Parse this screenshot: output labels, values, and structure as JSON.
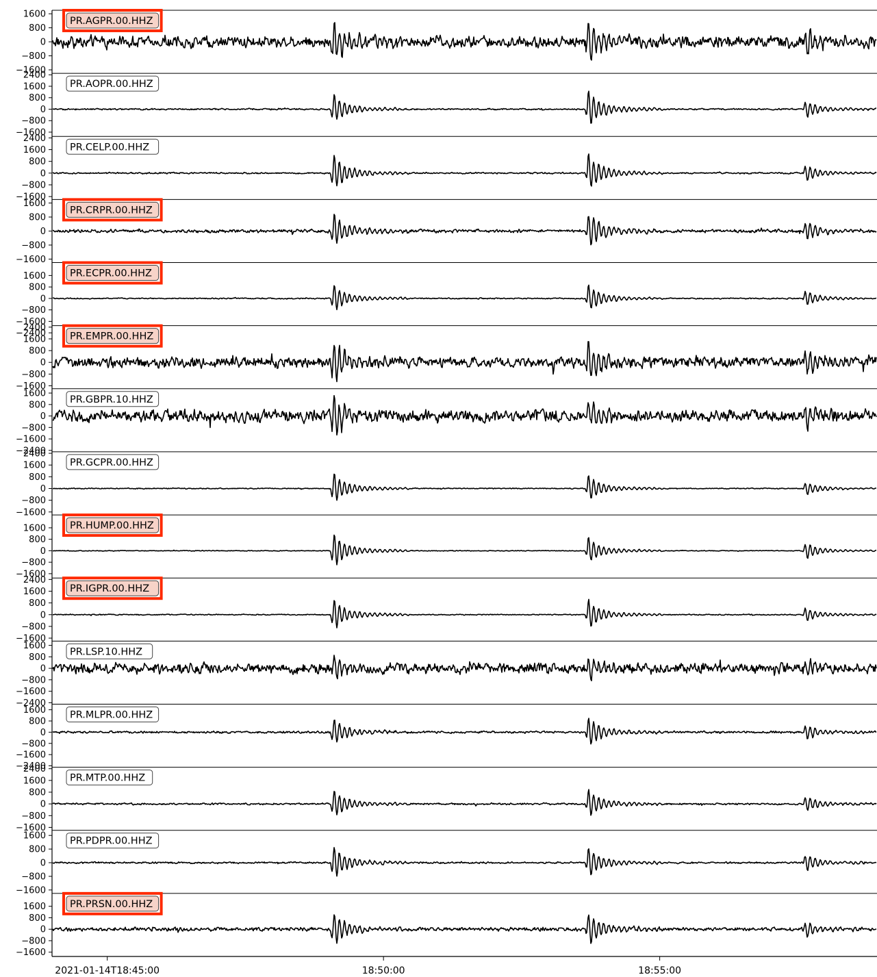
{
  "chart_data": {
    "type": "line",
    "title": "",
    "xlabel": "",
    "ylabel": "",
    "x_start": "2021-01-14T18:44:00",
    "x_end": "2021-01-14T18:58:56",
    "xticks": [
      {
        "value": "2021-01-14T18:45:00",
        "label": "2021-01-14T18:45:00"
      },
      {
        "value": "2021-01-14T18:50:00",
        "label": "18:50:00"
      },
      {
        "value": "2021-01-14T18:55:00",
        "label": "18:55:00"
      }
    ],
    "event_arrivals": [
      "2021-01-14T18:49:05",
      "2021-01-14T18:53:42",
      "2021-01-14T18:57:38"
    ],
    "highlight_color": "#ff2a00",
    "traces": [
      {
        "name": "PR.AGPR.00.HHZ",
        "highlighted": true,
        "ylim": [
          -1800,
          1800
        ],
        "yticks": [
          "1600",
          "800",
          "0",
          "−800",
          "−1600"
        ],
        "noise": 380,
        "event_amp": [
          1500,
          1700,
          900
        ]
      },
      {
        "name": "PR.AOPR.00.HHZ",
        "highlighted": false,
        "ylim": [
          -1900,
          2500
        ],
        "yticks": [
          "2400",
          "1600",
          "800",
          "0",
          "−800",
          "−1600"
        ],
        "noise": 60,
        "event_amp": [
          1300,
          1600,
          800
        ]
      },
      {
        "name": "PR.CELP.00.HHZ",
        "highlighted": false,
        "ylim": [
          -1800,
          2500
        ],
        "yticks": [
          "2400",
          "1600",
          "800",
          "0",
          "−800",
          "−1600"
        ],
        "noise": 60,
        "event_amp": [
          1500,
          1550,
          700
        ]
      },
      {
        "name": "PR.CRPR.00.HHZ",
        "highlighted": true,
        "ylim": [
          -1800,
          1800
        ],
        "yticks": [
          "1600",
          "800",
          "0",
          "−800",
          "−1600"
        ],
        "noise": 110,
        "event_amp": [
          1200,
          1300,
          700
        ]
      },
      {
        "name": "PR.ECPR.00.HHZ",
        "highlighted": true,
        "ylim": [
          -1900,
          2500
        ],
        "yticks": [
          "1600",
          "800",
          "0",
          "−800",
          "−1600",
          "−2400"
        ],
        "noise": 45,
        "event_amp": [
          1200,
          1200,
          700
        ]
      },
      {
        "name": "PR.EMPR.00.HHZ",
        "highlighted": true,
        "ylim": [
          -1800,
          2500
        ],
        "yticks": [
          "2400",
          "1600",
          "800",
          "0",
          "−800",
          "−1600"
        ],
        "noise": 420,
        "event_amp": [
          1800,
          1700,
          1200
        ]
      },
      {
        "name": "PR.GBPR.10.HHZ",
        "highlighted": false,
        "ylim": [
          -2500,
          1900
        ],
        "yticks": [
          "1600",
          "800",
          "0",
          "−800",
          "−1600",
          "−2400"
        ],
        "noise": 480,
        "event_amp": [
          2000,
          1100,
          900
        ]
      },
      {
        "name": "PR.GCPR.00.HHZ",
        "highlighted": false,
        "ylim": [
          -1800,
          2500
        ],
        "yticks": [
          "2400",
          "1600",
          "800",
          "0",
          "−800",
          "−1600"
        ],
        "noise": 40,
        "event_amp": [
          1300,
          1100,
          600
        ]
      },
      {
        "name": "PR.HUMP.00.HHZ",
        "highlighted": true,
        "ylim": [
          -1900,
          2500
        ],
        "yticks": [
          "1600",
          "800",
          "0",
          "−800",
          "−1600"
        ],
        "noise": 30,
        "event_amp": [
          1500,
          1100,
          700
        ]
      },
      {
        "name": "PR.IGPR.00.HHZ",
        "highlighted": true,
        "ylim": [
          -1800,
          2500
        ],
        "yticks": [
          "2400",
          "1600",
          "800",
          "0",
          "−800",
          "−1600"
        ],
        "noise": 40,
        "event_amp": [
          1300,
          1200,
          600
        ]
      },
      {
        "name": "PR.LSP.10.HHZ",
        "highlighted": false,
        "ylim": [
          -2500,
          1900
        ],
        "yticks": [
          "1600",
          "800",
          "0",
          "−800",
          "−1600",
          "−2400"
        ],
        "noise": 420,
        "event_amp": [
          900,
          700,
          600
        ]
      },
      {
        "name": "PR.MLPR.00.HHZ",
        "highlighted": false,
        "ylim": [
          -2500,
          2000
        ],
        "yticks": [
          "1600",
          "800",
          "0",
          "−800",
          "−1600",
          "−2400"
        ],
        "noise": 90,
        "event_amp": [
          1200,
          1300,
          700
        ]
      },
      {
        "name": "PR.MTP.00.HHZ",
        "highlighted": false,
        "ylim": [
          -1800,
          2500
        ],
        "yticks": [
          "2400",
          "1600",
          "800",
          "0",
          "−800",
          "−1600"
        ],
        "noise": 70,
        "event_amp": [
          1200,
          1100,
          700
        ]
      },
      {
        "name": "PR.PDPR.00.HHZ",
        "highlighted": false,
        "ylim": [
          -1800,
          1900
        ],
        "yticks": [
          "1600",
          "800",
          "0",
          "−800",
          "−1600"
        ],
        "noise": 60,
        "event_amp": [
          1200,
          1100,
          650
        ]
      },
      {
        "name": "PR.PRSN.00.HHZ",
        "highlighted": true,
        "ylim": [
          -1900,
          2500
        ],
        "yticks": [
          "1600",
          "800",
          "0",
          "−800",
          "−1600"
        ],
        "noise": 150,
        "event_amp": [
          1400,
          1400,
          700
        ]
      }
    ]
  }
}
